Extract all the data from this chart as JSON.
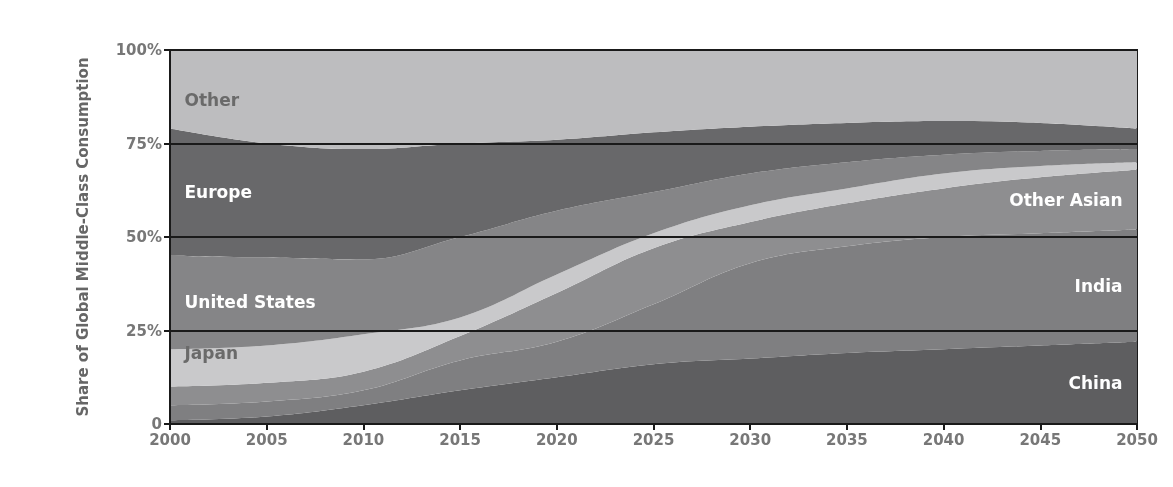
{
  "chart_data": {
    "type": "area",
    "stacked": true,
    "ylabel": "Share of Global Middle-Class Consumption",
    "x": [
      2000,
      2005,
      2010,
      2015,
      2020,
      2025,
      2030,
      2035,
      2040,
      2045,
      2050
    ],
    "xlim": [
      2000,
      2050
    ],
    "xticks": [
      2000,
      2005,
      2010,
      2015,
      2020,
      2025,
      2030,
      2035,
      2040,
      2045,
      2050
    ],
    "ylim": [
      0,
      100
    ],
    "yticks": [
      {
        "value": 0,
        "label": "0"
      },
      {
        "value": 25,
        "label": "25%"
      },
      {
        "value": 50,
        "label": "50%"
      },
      {
        "value": 75,
        "label": "75%"
      },
      {
        "value": 100,
        "label": "100%"
      }
    ],
    "grid": "y",
    "legend": false,
    "series": [
      {
        "name": "China",
        "color": "#5e5e60",
        "values": [
          1,
          2,
          5,
          9,
          12.5,
          16,
          17.5,
          19,
          20,
          21,
          22
        ]
      },
      {
        "name": "India",
        "color": "#7f7f81",
        "values": [
          4,
          4,
          4,
          8,
          9.5,
          16,
          25.5,
          28.5,
          30,
          30,
          30
        ]
      },
      {
        "name": "Other Asian",
        "color": "#8e8e90",
        "values": [
          5,
          5,
          5,
          6.5,
          13,
          15,
          11,
          11.5,
          13,
          15,
          16
        ]
      },
      {
        "name": "Japan",
        "color": "#c9c9cb",
        "values": [
          10,
          10,
          10,
          5,
          5,
          4,
          4.5,
          4,
          4,
          3,
          2
        ]
      },
      {
        "name": "United States",
        "color": "#858587",
        "values": [
          25,
          23.5,
          20,
          21.5,
          17,
          11,
          8.5,
          7,
          5,
          4,
          3.5
        ]
      },
      {
        "name": "Europe",
        "color": "#68686a",
        "values": [
          34,
          30.5,
          29.5,
          25,
          19,
          16,
          12.5,
          10.5,
          9,
          7.5,
          5.5
        ]
      },
      {
        "name": "Other",
        "color": "#bdbdbf",
        "values": [
          21,
          25,
          26.5,
          25,
          24,
          22,
          20.5,
          19.5,
          19,
          19.5,
          21
        ]
      }
    ]
  }
}
